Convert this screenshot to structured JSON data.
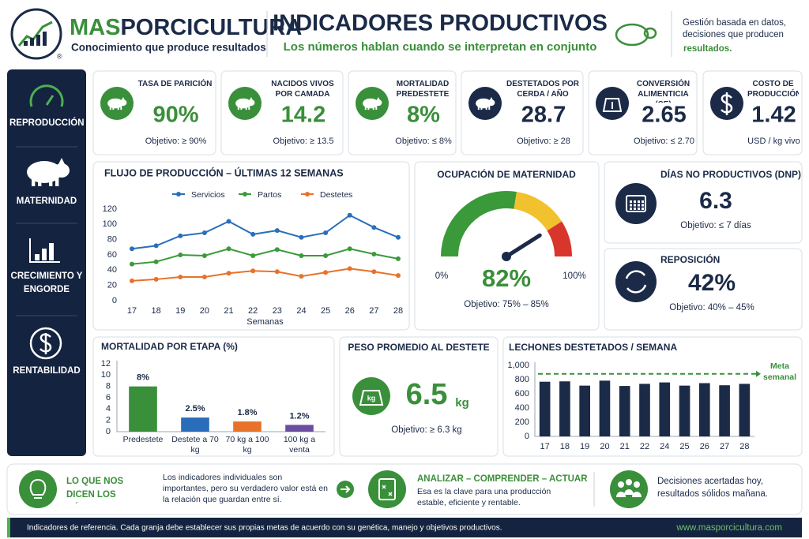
{
  "header": {
    "brand_a": "MAS",
    "brand_b": "PORCICULTURA",
    "registered": "®",
    "tagline": "Conocimiento que produce resultados",
    "title": "INDICADORES PRODUCTIVOS",
    "subtitle": "Los números hablan cuando se interpretan en conjunto",
    "note": "Gestión basada en datos, decisiones que producen",
    "note_highlight": "resultados."
  },
  "sidebar": [
    "REPRODUCCIÓN",
    "MATERNIDAD",
    "CRECIMIENTO Y ENGORDE",
    "RENTABILIDAD"
  ],
  "kpis": [
    {
      "label": "TASA DE PARICIÓN",
      "value": "90%",
      "target": "Objetivo: ≥ 90%",
      "color": "#3a8f3a"
    },
    {
      "label": "NACIDOS VIVOS POR CAMADA",
      "value": "14.2",
      "target": "Objetivo: ≥ 13.5",
      "color": "#3a8f3a"
    },
    {
      "label": "MORTALIDAD PREDESTETE",
      "value": "8%",
      "target": "Objetivo: ≤ 8%",
      "color": "#3a8f3a"
    },
    {
      "label": "DESTETADOS POR CERDA / AÑO",
      "value": "28.7",
      "target": "Objetivo: ≥ 28",
      "color": "#1b2a47"
    },
    {
      "label": "CONVERSIÓN ALIMENTICIA (CE)",
      "value": "2.65",
      "target": "Objetivo: ≤ 2.70",
      "color": "#1b2a47"
    },
    {
      "label": "COSTO DE PRODUCCIÓN",
      "value": "1.42",
      "target": "USD / kg vivo",
      "color": "#1b2a47"
    }
  ],
  "cards": {
    "dnp": {
      "title": "DÍAS NO PRODUCTIVOS (DNP)",
      "value": "6.3",
      "target": "Objetivo: ≤ 7 días"
    },
    "reposicion": {
      "title": "REPOSICIÓN",
      "value": "42%",
      "target": "Objetivo: 40% – 45%"
    },
    "peso": {
      "title": "PESO PROMEDIO AL DESTETE",
      "icon_label": "kg",
      "value": "6.5",
      "unit": "kg",
      "target": "Objetivo: ≥ 6.3 kg"
    }
  },
  "footer": {
    "title_1": "LO QUE NOS DICEN LOS NÚMEROS",
    "text_1": "Los indicadores individuales son importantes, pero su verdadero valor está en la relación que guardan entre sí.",
    "title_2": "ANALIZAR – COMPRENDER – ACTUAR",
    "text_2": "Esa es la clave para una producción estable, eficiente y rentable.",
    "text_3": "Decisiones acertadas hoy, resultados sólidos mañana."
  },
  "bottom": {
    "note": "Indicadores de referencia. Cada granja debe establecer sus propias metas de acuerdo con su genética, manejo y objetivos productivos.",
    "url": "www.masporcicultura.com"
  },
  "chart_data": [
    {
      "type": "line",
      "title": "FLUJO DE PRODUCCIÓN – ÚLTIMAS 12 SEMANAS",
      "xlabel": "Semanas",
      "categories": [
        17,
        18,
        19,
        20,
        21,
        22,
        23,
        24,
        25,
        26,
        27,
        28
      ],
      "series": [
        {
          "name": "Servicios",
          "color": "#2a6ebb",
          "values": [
            68,
            72,
            85,
            89,
            104,
            87,
            92,
            83,
            89,
            112,
            96,
            83
          ]
        },
        {
          "name": "Partos",
          "color": "#3b9a3b",
          "values": [
            48,
            51,
            60,
            59,
            68,
            59,
            67,
            59,
            59,
            68,
            61,
            55
          ]
        },
        {
          "name": "Destetes",
          "color": "#e8722a",
          "values": [
            26,
            28,
            31,
            31,
            36,
            39,
            38,
            32,
            37,
            42,
            38,
            33
          ]
        }
      ],
      "ylim": [
        0,
        120
      ],
      "yticks": [
        0,
        20,
        40,
        60,
        80,
        100,
        120
      ],
      "grid": false,
      "legend": "top"
    },
    {
      "type": "gauge",
      "title": "OCUPACIÓN DE MATERNIDAD",
      "subtitle": "Objetivo: 75% – 85%",
      "values": [
        82
      ],
      "value_labels": [
        "82%"
      ],
      "color": "#3a8f3a",
      "ylim": [
        0,
        100
      ],
      "yticks": [
        {
          "value": 0,
          "label": "0%"
        },
        {
          "value": 100,
          "label": "100%"
        }
      ],
      "bands": [
        {
          "from": 0,
          "to": 55,
          "color": "#3a9a3a"
        },
        {
          "from": 55,
          "to": 82,
          "color": "#f2c12e"
        },
        {
          "from": 82,
          "to": 100,
          "color": "#d9362b"
        }
      ]
    },
    {
      "type": "bar",
      "title": "MORTALIDAD POR ETAPA (%)",
      "categories": [
        "Predestete",
        "Destete a 70 kg",
        "70 kg a 100 kg",
        "100 kg a venta"
      ],
      "values": [
        8,
        2.5,
        1.8,
        1.2
      ],
      "value_labels": [
        "8%",
        "2.5%",
        "1.8%",
        "1.2%"
      ],
      "colors": [
        "#3a8f3a",
        "#2a6ebb",
        "#e8722a",
        "#6b4ea0"
      ],
      "ylim": [
        0,
        12
      ],
      "yticks": [
        0,
        2,
        4,
        6,
        8,
        10,
        12
      ]
    },
    {
      "type": "bar",
      "title": "LECHONES DESTETADOS / SEMANA",
      "categories": [
        17,
        18,
        19,
        20,
        21,
        22,
        24,
        25,
        26,
        27,
        28
      ],
      "values": [
        770,
        775,
        715,
        785,
        710,
        740,
        760,
        715,
        750,
        720,
        740
      ],
      "color": "#1b2a47",
      "target": 880,
      "target_label": "Meta semanal",
      "ylim": [
        0,
        1000
      ],
      "yticks": [
        0,
        200,
        400,
        600,
        800,
        {
          "value": 1000,
          "label": "1,000"
        }
      ]
    }
  ]
}
